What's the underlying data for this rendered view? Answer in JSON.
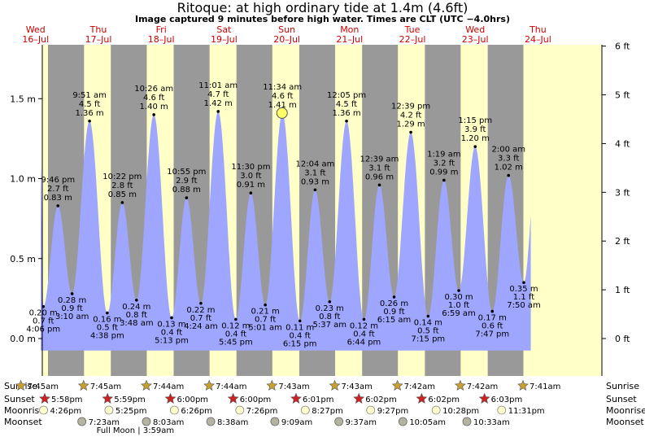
{
  "title": "Ritoque: at high  ordinary tide at 1.4m (4.6ft)",
  "subtitle": "Image captured 9 minutes before high water. Times are CLT (UTC −4.0hrs)",
  "colors": {
    "night": "#999999",
    "day": "#ffffc8",
    "tide_fill": "#9fa6ff",
    "day_label": "#cc0000",
    "sun_star": "#c8a030",
    "sunset_star": "#cc2222",
    "moonrise": "#ffffcc",
    "moonset": "#b4b4a0",
    "marker": "#ffff66"
  },
  "chart_data": {
    "type": "area",
    "ylabel_left": "m",
    "ylabel_right": "ft",
    "ylim_m": [
      -0.25,
      1.82
    ],
    "left_ticks": [
      "0.0 m",
      "0.5 m",
      "1.0 m",
      "1.5 m"
    ],
    "right_ticks": [
      "0 ft",
      "1 ft",
      "2 ft",
      "3 ft",
      "4 ft",
      "5 ft",
      "6 ft"
    ],
    "days": [
      {
        "dow": "Wed",
        "date": "16–Jul"
      },
      {
        "dow": "Thu",
        "date": "17–Jul"
      },
      {
        "dow": "Fri",
        "date": "18–Jul"
      },
      {
        "dow": "Sat",
        "date": "19–Jul"
      },
      {
        "dow": "Sun",
        "date": "20–Jul"
      },
      {
        "dow": "Mon",
        "date": "21–Jul"
      },
      {
        "dow": "Tue",
        "date": "22–Jul"
      },
      {
        "dow": "Wed",
        "date": "23–Jul"
      },
      {
        "dow": "Thu",
        "date": "24–Jul"
      }
    ],
    "current_marker": {
      "height_m": 1.41
    },
    "tides": [
      {
        "t": 16.17,
        "m": 0.2,
        "type": "low",
        "time": "4:06 pm",
        "m_label": "0.20 m",
        "ft": "0.7 ft"
      },
      {
        "t": 21.77,
        "m": 0.83,
        "type": "high",
        "time": "9:46 pm",
        "m_label": "0.83 m",
        "ft": "2.7 ft"
      },
      {
        "t": 27.17,
        "m": 0.28,
        "type": "low",
        "time": "3:10 am",
        "m_label": "0.28 m",
        "ft": "0.9 ft"
      },
      {
        "t": 33.85,
        "m": 1.36,
        "type": "high",
        "time": "9:51 am",
        "m_label": "1.36 m",
        "ft": "4.5 ft"
      },
      {
        "t": 40.63,
        "m": 0.16,
        "type": "low",
        "time": "4:38 pm",
        "m_label": "0.16 m",
        "ft": "0.5 ft"
      },
      {
        "t": 46.37,
        "m": 0.85,
        "type": "high",
        "time": "10:22 pm",
        "m_label": "0.85 m",
        "ft": "2.8 ft"
      },
      {
        "t": 51.8,
        "m": 0.24,
        "type": "low",
        "time": "3:48 am",
        "m_label": "0.24 m",
        "ft": "0.8 ft"
      },
      {
        "t": 58.43,
        "m": 1.4,
        "type": "high",
        "time": "10:26 am",
        "m_label": "1.40 m",
        "ft": "4.6 ft"
      },
      {
        "t": 65.22,
        "m": 0.13,
        "type": "low",
        "time": "5:13 pm",
        "m_label": "0.13 m",
        "ft": "0.4 ft"
      },
      {
        "t": 70.92,
        "m": 0.88,
        "type": "high",
        "time": "10:55 pm",
        "m_label": "0.88 m",
        "ft": "2.9 ft"
      },
      {
        "t": 76.4,
        "m": 0.22,
        "type": "low",
        "time": "4:24 am",
        "m_label": "0.22 m",
        "ft": "0.7 ft"
      },
      {
        "t": 83.02,
        "m": 1.42,
        "type": "high",
        "time": "11:01 am",
        "m_label": "1.42 m",
        "ft": "4.7 ft"
      },
      {
        "t": 89.75,
        "m": 0.12,
        "type": "low",
        "time": "5:45 pm",
        "m_label": "0.12 m",
        "ft": "0.4 ft"
      },
      {
        "t": 95.5,
        "m": 0.91,
        "type": "high",
        "time": "11:30 pm",
        "m_label": "0.91 m",
        "ft": "3.0 ft"
      },
      {
        "t": 101.02,
        "m": 0.21,
        "type": "low",
        "time": "5:01 am",
        "m_label": "0.21 m",
        "ft": "0.7 ft"
      },
      {
        "t": 107.57,
        "m": 1.41,
        "type": "high",
        "time": "11:34 am",
        "m_label": "1.41 m",
        "ft": "4.6 ft"
      },
      {
        "t": 114.25,
        "m": 0.11,
        "type": "low",
        "time": "6:15 pm",
        "m_label": "0.11 m",
        "ft": "0.4 ft"
      },
      {
        "t": 120.07,
        "m": 0.93,
        "type": "high",
        "time": "12:04 am",
        "m_label": "0.93 m",
        "ft": "3.1 ft"
      },
      {
        "t": 125.62,
        "m": 0.23,
        "type": "low",
        "time": "5:37 am",
        "m_label": "0.23 m",
        "ft": "0.8 ft"
      },
      {
        "t": 132.08,
        "m": 1.36,
        "type": "high",
        "time": "12:05 pm",
        "m_label": "1.36 m",
        "ft": "4.5 ft"
      },
      {
        "t": 138.73,
        "m": 0.12,
        "type": "low",
        "time": "6:44 pm",
        "m_label": "0.12 m",
        "ft": "0.4 ft"
      },
      {
        "t": 144.65,
        "m": 0.96,
        "type": "high",
        "time": "12:39 am",
        "m_label": "0.96 m",
        "ft": "3.1 ft"
      },
      {
        "t": 150.25,
        "m": 0.26,
        "type": "low",
        "time": "6:15 am",
        "m_label": "0.26 m",
        "ft": "0.9 ft"
      },
      {
        "t": 156.65,
        "m": 1.29,
        "type": "high",
        "time": "12:39 pm",
        "m_label": "1.29 m",
        "ft": "4.2 ft"
      },
      {
        "t": 163.25,
        "m": 0.14,
        "type": "low",
        "time": "7:15 pm",
        "m_label": "0.14 m",
        "ft": "0.5 ft"
      },
      {
        "t": 169.32,
        "m": 0.99,
        "type": "high",
        "time": "1:19 am",
        "m_label": "0.99 m",
        "ft": "3.2 ft"
      },
      {
        "t": 174.98,
        "m": 0.3,
        "type": "low",
        "time": "6:59 am",
        "m_label": "0.30 m",
        "ft": "1.0 ft"
      },
      {
        "t": 181.25,
        "m": 1.2,
        "type": "high",
        "time": "1:15 pm",
        "m_label": "1.20 m",
        "ft": "3.9 ft"
      },
      {
        "t": 187.78,
        "m": 0.17,
        "type": "low",
        "time": "7:47 pm",
        "m_label": "0.17 m",
        "ft": "0.6 ft"
      },
      {
        "t": 194.0,
        "m": 1.02,
        "type": "high",
        "time": "2:00 am",
        "m_label": "1.02 m",
        "ft": "3.3 ft"
      },
      {
        "t": 199.83,
        "m": 0.35,
        "type": "low",
        "time": "7:50 am",
        "m_label": "0.35 m",
        "ft": "1.1 ft"
      }
    ]
  },
  "astro": {
    "row_labels": [
      "Sunrise",
      "Sunset",
      "Moonrise",
      "Moonset"
    ],
    "sunrise": [
      {
        "t": 7.75,
        "time": "7:45am"
      },
      {
        "t": 31.75,
        "time": "7:45am"
      },
      {
        "t": 55.73,
        "time": "7:44am"
      },
      {
        "t": 79.73,
        "time": "7:44am"
      },
      {
        "t": 103.72,
        "time": "7:43am"
      },
      {
        "t": 127.72,
        "time": "7:43am"
      },
      {
        "t": 151.7,
        "time": "7:42am"
      },
      {
        "t": 175.7,
        "time": "7:42am"
      },
      {
        "t": 199.68,
        "time": "7:41am"
      }
    ],
    "sunset": [
      {
        "t": 17.97,
        "time": "5:58pm"
      },
      {
        "t": 41.98,
        "time": "5:59pm"
      },
      {
        "t": 66.0,
        "time": "6:00pm"
      },
      {
        "t": 90.0,
        "time": "6:00pm"
      },
      {
        "t": 114.02,
        "time": "6:01pm"
      },
      {
        "t": 138.03,
        "time": "6:02pm"
      },
      {
        "t": 162.03,
        "time": "6:02pm"
      },
      {
        "t": 186.05,
        "time": "6:03pm"
      }
    ],
    "moonrise": [
      {
        "t": 16.43,
        "time": "4:26pm"
      },
      {
        "t": 41.42,
        "time": "5:25pm"
      },
      {
        "t": 66.43,
        "time": "6:26pm"
      },
      {
        "t": 91.43,
        "time": "7:26pm"
      },
      {
        "t": 116.45,
        "time": "8:27pm"
      },
      {
        "t": 141.45,
        "time": "9:27pm"
      },
      {
        "t": 166.47,
        "time": "10:28pm"
      },
      {
        "t": 191.52,
        "time": "11:31pm"
      }
    ],
    "moonset": [
      {
        "t": 31.38,
        "time": "7:23am"
      },
      {
        "t": 56.05,
        "time": "8:03am"
      },
      {
        "t": 80.63,
        "time": "8:38am"
      },
      {
        "t": 105.15,
        "time": "9:09am"
      },
      {
        "t": 129.62,
        "time": "9:37am"
      },
      {
        "t": 154.08,
        "time": "10:05am"
      },
      {
        "t": 178.55,
        "time": "10:33am"
      }
    ],
    "full_moon": {
      "t": 51.98,
      "label": "Full Moon | 3:59am"
    }
  }
}
